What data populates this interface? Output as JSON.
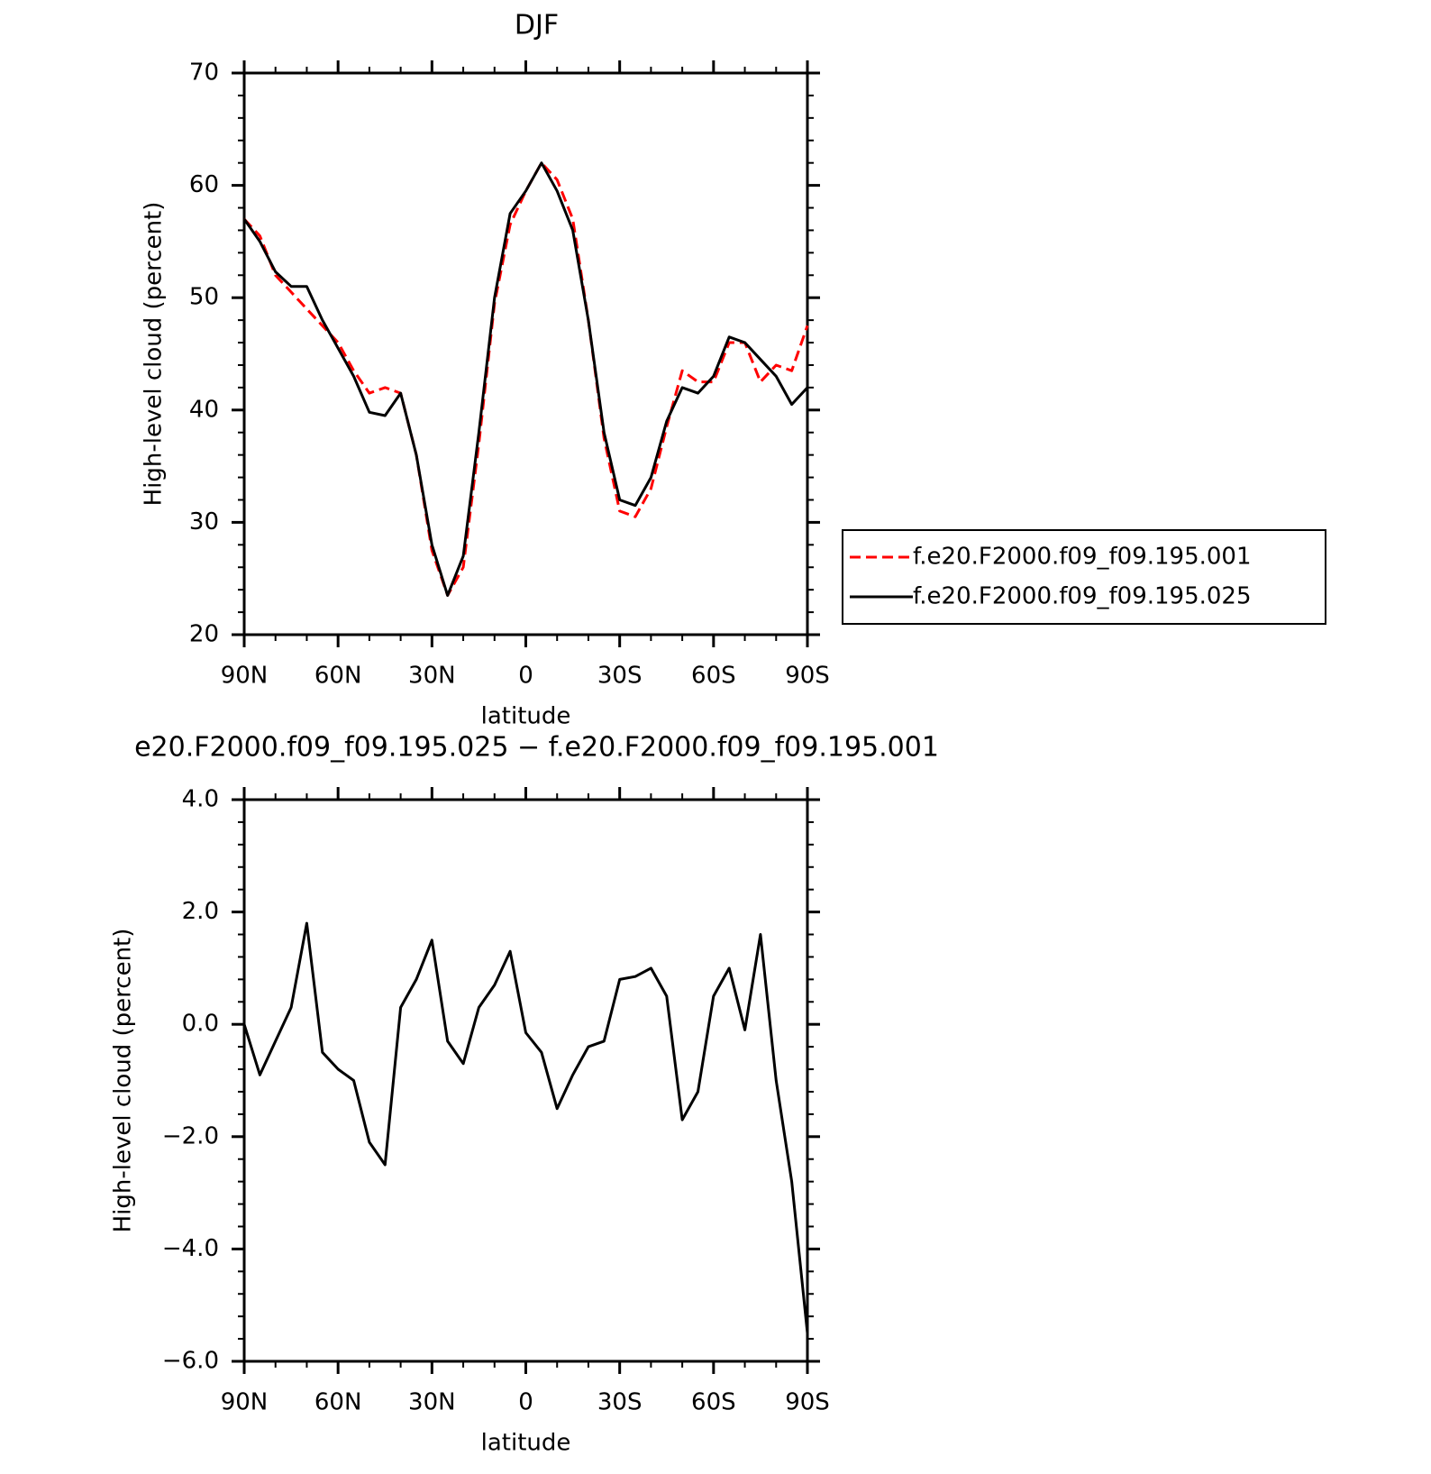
{
  "chart_data": [
    {
      "type": "line",
      "title": "DJF",
      "xlabel": "latitude",
      "ylabel": "High-level cloud (percent)",
      "x": [
        90,
        85,
        80,
        75,
        70,
        65,
        60,
        55,
        50,
        45,
        40,
        35,
        30,
        25,
        20,
        15,
        10,
        5,
        0,
        -5,
        -10,
        -15,
        -20,
        -25,
        -30,
        -35,
        -40,
        -45,
        -50,
        -55,
        -60,
        -65,
        -70,
        -75,
        -80,
        -85,
        -90
      ],
      "series": [
        {
          "name": "f.e20.F2000.f09_f09.195.001",
          "color": "#ff0000",
          "style": "dashed",
          "values": [
            57,
            55.5,
            52,
            50.5,
            49,
            47.5,
            46,
            43.5,
            41.5,
            42,
            41.5,
            36,
            27.5,
            23.5,
            26,
            37,
            49.5,
            56.5,
            59.5,
            62,
            60.5,
            57,
            48,
            37.5,
            31,
            30.5,
            33,
            38.5,
            43.5,
            42.5,
            42.5,
            46,
            46,
            42.5,
            44,
            43.5,
            47.5
          ]
        },
        {
          "name": "f.e20.F2000.f09_f09.195.025",
          "color": "#000000",
          "style": "solid",
          "values": [
            57,
            55,
            52.3,
            51,
            51,
            48,
            45.5,
            43,
            39.8,
            39.5,
            41.5,
            36,
            28,
            23.5,
            27,
            38,
            50,
            57.5,
            59.5,
            62,
            59.5,
            56,
            48,
            38,
            32,
            31.5,
            34,
            39,
            42,
            41.5,
            43,
            46.5,
            46,
            44.5,
            43,
            40.5,
            42
          ]
        }
      ],
      "xlim": [
        90,
        -90
      ],
      "xticks": [
        {
          "value": 90,
          "label": "90N"
        },
        {
          "value": 60,
          "label": "60N"
        },
        {
          "value": 30,
          "label": "30N"
        },
        0,
        {
          "value": -30,
          "label": "30S"
        },
        {
          "value": -60,
          "label": "60S"
        },
        {
          "value": -90,
          "label": "90S"
        }
      ],
      "ylim": [
        20,
        70
      ],
      "yticks": [
        20,
        30,
        40,
        50,
        60,
        70
      ],
      "legend": "right"
    },
    {
      "type": "line",
      "title": "e20.F2000.f09_f09.195.025 − f.e20.F2000.f09_f09.195.001",
      "xlabel": "latitude",
      "ylabel": "High-level cloud (percent)",
      "x": [
        90,
        85,
        80,
        75,
        70,
        65,
        60,
        55,
        50,
        45,
        40,
        35,
        30,
        25,
        20,
        15,
        10,
        5,
        0,
        -5,
        -10,
        -15,
        -20,
        -25,
        -30,
        -35,
        -40,
        -45,
        -50,
        -55,
        -60,
        -65,
        -70,
        -75,
        -80,
        -85,
        -90
      ],
      "series": [
        {
          "color": "#000000",
          "style": "solid",
          "values": [
            0,
            -0.9,
            -0.3,
            0.3,
            1.8,
            -0.5,
            -0.8,
            -1.0,
            -2.1,
            -2.5,
            0.3,
            0.8,
            1.5,
            -0.3,
            -0.7,
            0.3,
            0.7,
            1.3,
            -0.15,
            -0.5,
            -1.5,
            -0.9,
            -0.4,
            -0.3,
            0.8,
            0.85,
            1.0,
            0.5,
            -1.7,
            -1.2,
            0.5,
            1.0,
            -0.1,
            1.6,
            -1.0,
            -2.8,
            -5.5
          ]
        }
      ],
      "xlim": [
        90,
        -90
      ],
      "xticks": [
        {
          "value": 90,
          "label": "90N"
        },
        {
          "value": 60,
          "label": "60N"
        },
        {
          "value": 30,
          "label": "30N"
        },
        0,
        {
          "value": -30,
          "label": "30S"
        },
        {
          "value": -60,
          "label": "60S"
        },
        {
          "value": -90,
          "label": "90S"
        }
      ],
      "ylim": [
        -6,
        4
      ],
      "yticks": [
        {
          "value": -6,
          "label": "−6.0"
        },
        {
          "value": -4,
          "label": "−4.0"
        },
        {
          "value": -2,
          "label": "−2.0"
        },
        {
          "value": 0,
          "label": "0.0"
        },
        {
          "value": 2,
          "label": "2.0"
        },
        {
          "value": 4,
          "label": "4.0"
        }
      ]
    }
  ]
}
